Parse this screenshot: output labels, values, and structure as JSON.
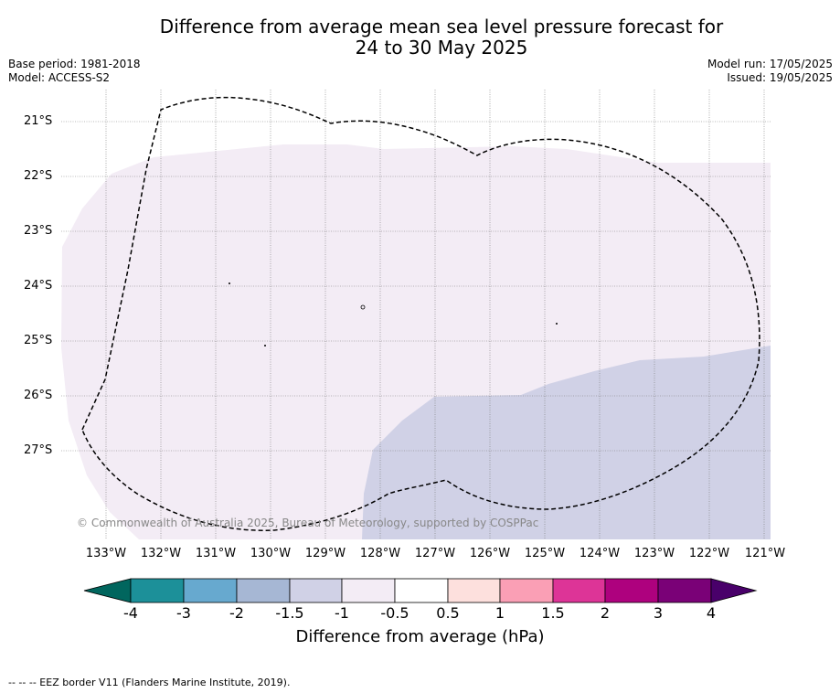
{
  "title": {
    "line1": "Difference from average mean sea level pressure forecast for",
    "line2": "24 to 30 May 2025"
  },
  "meta_left": {
    "base_period": "Base period: 1981-2018",
    "model": "Model: ACCESS-S2"
  },
  "meta_right": {
    "model_run": "Model run: 17/05/2025",
    "issued": "Issued: 19/05/2025"
  },
  "map": {
    "lat_labels": [
      "21°S",
      "22°S",
      "23°S",
      "24°S",
      "25°S",
      "26°S",
      "27°S"
    ],
    "lon_labels": [
      "133°W",
      "132°W",
      "131°W",
      "130°W",
      "129°W",
      "128°W",
      "127°W",
      "126°W",
      "125°W",
      "124°W",
      "123°W",
      "122°W",
      "121°W"
    ],
    "fill_colors": {
      "minus1_to_minus0_5": "#f3ecf5",
      "minus1_5_to_minus1": "#d0d1e6"
    },
    "copyright": "© Commonwealth of Australia 2025, Bureau of Meteorology, supported by COSPPac"
  },
  "colorbar": {
    "ticks": [
      "-4",
      "-3",
      "-2",
      "-1.5",
      "-1",
      "-0.5",
      "0.5",
      "1",
      "1.5",
      "2",
      "3",
      "4"
    ],
    "colors": [
      "#01665e",
      "#1c9099",
      "#67a9cf",
      "#a6b7d4",
      "#d0d1e6",
      "#f3ecf5",
      "#ffffff",
      "#fde0dd",
      "#fa9fb5",
      "#dd3497",
      "#ae017e",
      "#7a0177",
      "#49006a"
    ],
    "label": "Difference from average (hPa)"
  },
  "footnote": "--  --  -- EEZ border V11 (Flanders Marine Institute, 2019)."
}
